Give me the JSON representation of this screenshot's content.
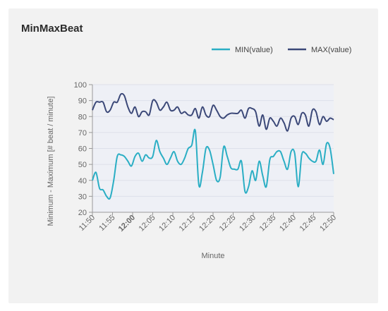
{
  "card": {
    "title": "MinMaxBeat"
  },
  "chart_data": {
    "type": "line",
    "title": "MinMaxBeat",
    "xlabel": "Minute",
    "ylabel": "Minimum - Maximum [# beat / minute]",
    "ylim": [
      20,
      100
    ],
    "xlim": [
      "11:50",
      "12:50"
    ],
    "yticks": [
      20,
      30,
      40,
      50,
      60,
      70,
      80,
      90,
      100
    ],
    "xticks": [
      "11:50",
      "11:55",
      "12:00",
      "12:05",
      "12:10",
      "12:15",
      "12:20",
      "12:25",
      "12:30",
      "12:35",
      "12:40",
      "12:45",
      "12:50"
    ],
    "bold_xtick": "12:00",
    "grid": true,
    "legend_position": "top-right",
    "series": [
      {
        "name": "MIN(value)",
        "color": "#2aaec4",
        "values": [
          [
            0,
            40
          ],
          [
            0.5,
            45
          ],
          [
            1,
            35
          ],
          [
            1.5,
            34
          ],
          [
            2,
            30
          ],
          [
            2.5,
            29
          ],
          [
            3,
            40
          ],
          [
            3.5,
            55
          ],
          [
            4,
            56
          ],
          [
            4.5,
            55
          ],
          [
            5,
            52
          ],
          [
            5.5,
            49
          ],
          [
            6,
            55
          ],
          [
            6.5,
            57
          ],
          [
            7,
            52
          ],
          [
            7.5,
            56
          ],
          [
            8,
            54
          ],
          [
            8.5,
            55
          ],
          [
            9,
            65
          ],
          [
            9.5,
            58
          ],
          [
            10,
            54
          ],
          [
            10.5,
            50
          ],
          [
            11,
            54
          ],
          [
            11.5,
            58
          ],
          [
            12,
            52
          ],
          [
            12.5,
            50
          ],
          [
            13,
            54
          ],
          [
            13.5,
            60
          ],
          [
            14,
            62
          ],
          [
            14.5,
            71
          ],
          [
            15,
            37
          ],
          [
            15.5,
            45
          ],
          [
            16,
            60
          ],
          [
            16.5,
            59
          ],
          [
            17,
            50
          ],
          [
            17.5,
            40
          ],
          [
            18,
            42
          ],
          [
            18.5,
            61
          ],
          [
            19,
            55
          ],
          [
            19.5,
            48
          ],
          [
            20,
            47
          ],
          [
            20.5,
            47
          ],
          [
            21,
            52
          ],
          [
            21.5,
            33
          ],
          [
            22,
            36
          ],
          [
            22.5,
            46
          ],
          [
            23,
            40
          ],
          [
            23.5,
            52
          ],
          [
            24,
            43
          ],
          [
            24.5,
            36
          ],
          [
            25,
            53
          ],
          [
            25.5,
            55
          ],
          [
            26,
            58
          ],
          [
            26.5,
            58
          ],
          [
            27,
            52
          ],
          [
            27.5,
            47
          ],
          [
            28,
            58
          ],
          [
            28.5,
            57
          ],
          [
            29,
            36
          ],
          [
            29.5,
            56
          ],
          [
            30,
            57
          ],
          [
            30.5,
            54
          ],
          [
            31,
            52
          ],
          [
            31.5,
            52
          ],
          [
            32,
            59
          ],
          [
            32.5,
            50
          ],
          [
            33,
            63
          ],
          [
            33.5,
            60
          ],
          [
            34,
            44
          ]
        ]
      },
      {
        "name": "MAX(value)",
        "color": "#3b4878",
        "values": [
          [
            0,
            84
          ],
          [
            0.5,
            89
          ],
          [
            1,
            89
          ],
          [
            1.5,
            89
          ],
          [
            2,
            83
          ],
          [
            2.5,
            84
          ],
          [
            3,
            89
          ],
          [
            3.5,
            89
          ],
          [
            4,
            94
          ],
          [
            4.5,
            93
          ],
          [
            5,
            86
          ],
          [
            5.5,
            82
          ],
          [
            6,
            86
          ],
          [
            6.5,
            80
          ],
          [
            7,
            83
          ],
          [
            7.5,
            83
          ],
          [
            8,
            81
          ],
          [
            8.5,
            90
          ],
          [
            9,
            89
          ],
          [
            9.5,
            84
          ],
          [
            10,
            86
          ],
          [
            10.5,
            89
          ],
          [
            11,
            84
          ],
          [
            11.5,
            84
          ],
          [
            12,
            86
          ],
          [
            12.5,
            82
          ],
          [
            13,
            83
          ],
          [
            13.5,
            81
          ],
          [
            14,
            81
          ],
          [
            14.5,
            85
          ],
          [
            15,
            79
          ],
          [
            15.5,
            86
          ],
          [
            16,
            81
          ],
          [
            16.5,
            80
          ],
          [
            17,
            87
          ],
          [
            17.5,
            84
          ],
          [
            18,
            80
          ],
          [
            18.5,
            79
          ],
          [
            19,
            81
          ],
          [
            19.5,
            82
          ],
          [
            20,
            82
          ],
          [
            20.5,
            82
          ],
          [
            21,
            84
          ],
          [
            21.5,
            79
          ],
          [
            22,
            85
          ],
          [
            22.5,
            85
          ],
          [
            23,
            83
          ],
          [
            23.5,
            74
          ],
          [
            24,
            81
          ],
          [
            24.5,
            72
          ],
          [
            25,
            79
          ],
          [
            25.5,
            77
          ],
          [
            26,
            74
          ],
          [
            26.5,
            79
          ],
          [
            27,
            76
          ],
          [
            27.5,
            71
          ],
          [
            28,
            79
          ],
          [
            28.5,
            80
          ],
          [
            29,
            75
          ],
          [
            29.5,
            82
          ],
          [
            30,
            81
          ],
          [
            30.5,
            74
          ],
          [
            31,
            84
          ],
          [
            31.5,
            83
          ],
          [
            32,
            75
          ],
          [
            32.5,
            80
          ],
          [
            33,
            77
          ],
          [
            33.5,
            79
          ],
          [
            34,
            78
          ]
        ]
      }
    ]
  }
}
